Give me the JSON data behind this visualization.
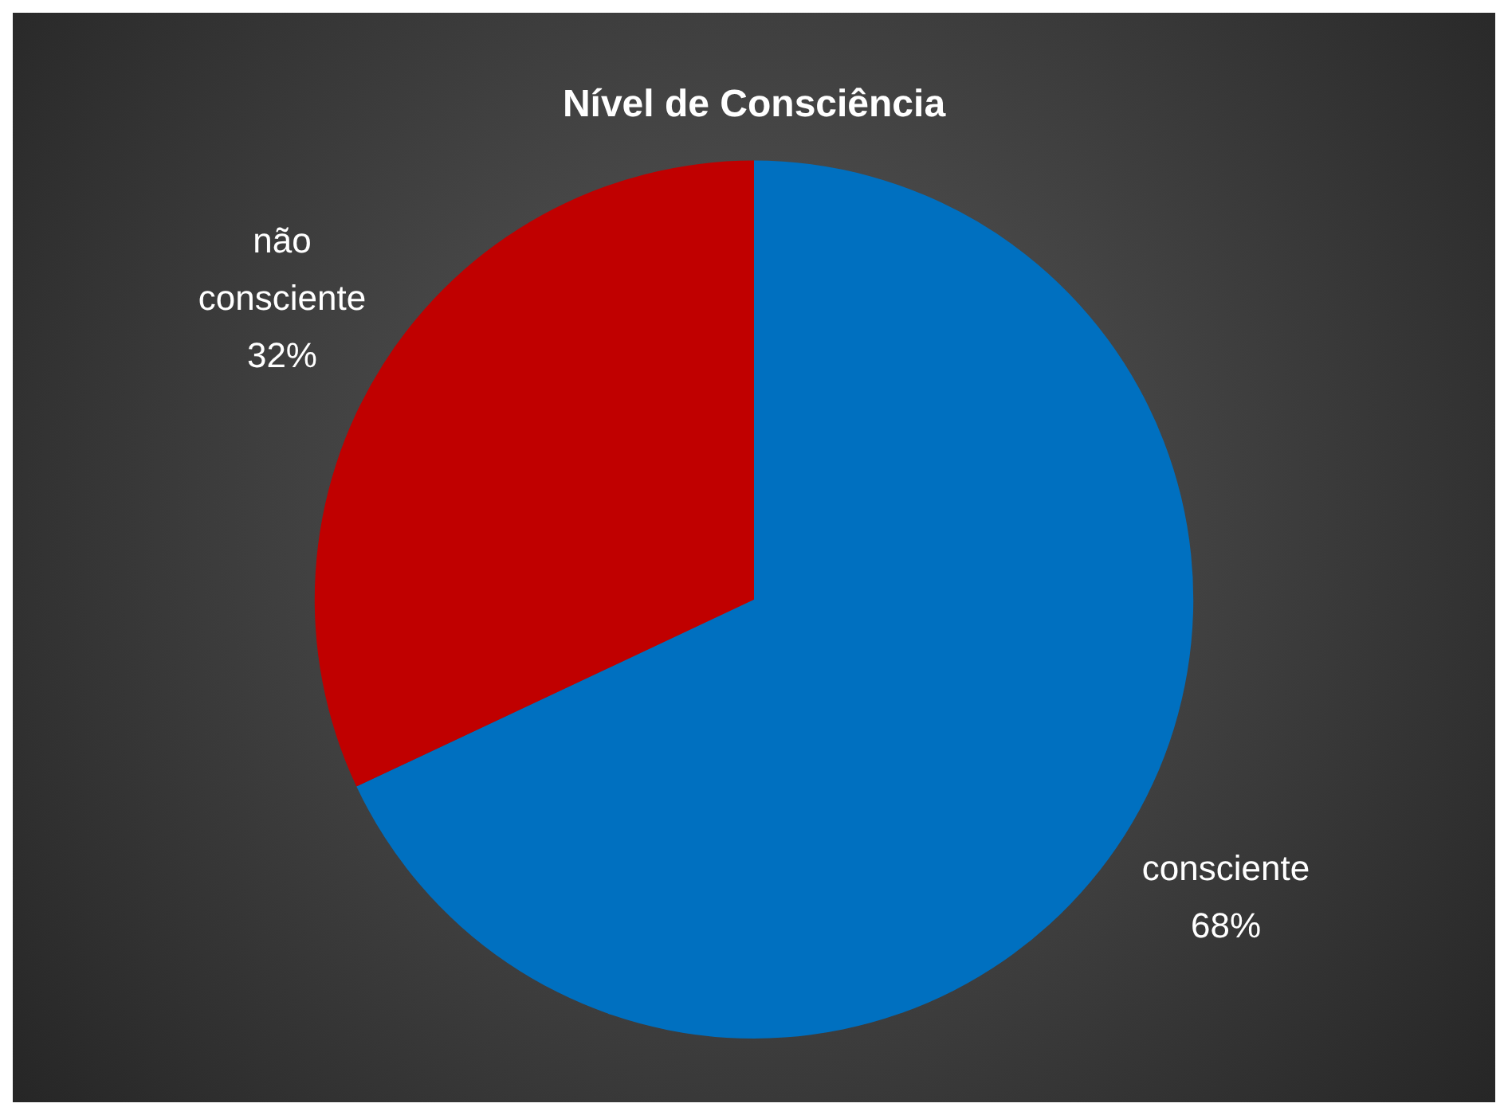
{
  "chart_data": {
    "type": "pie",
    "title": "Nível de Consciência",
    "categories": [
      "consciente",
      "não consciente"
    ],
    "values": [
      68,
      32
    ],
    "colors": [
      "#0070c0",
      "#c00000"
    ],
    "value_labels": [
      "68%",
      "32%"
    ],
    "legend": false
  }
}
